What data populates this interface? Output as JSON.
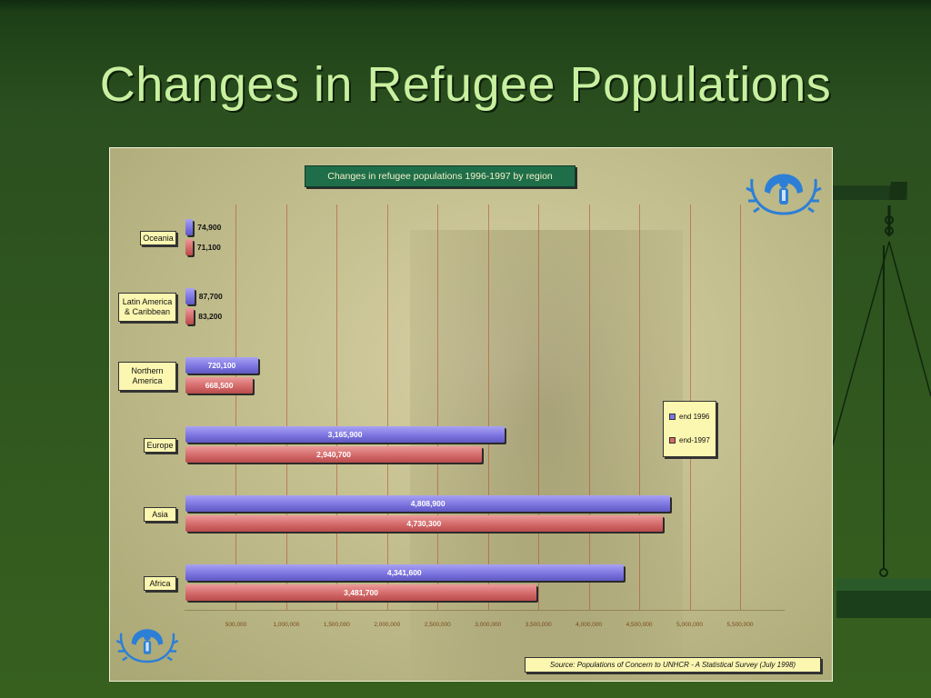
{
  "slide": {
    "title": "Changes in Refugee Populations"
  },
  "colors": {
    "series_1996": "#7d76e0",
    "series_1997": "#d46a6a",
    "title_bg": "#1f6e4a",
    "label_bg": "#fbf6b0"
  },
  "logo_icon": "unhcr-emblem-icon",
  "chart_data": {
    "type": "bar",
    "orientation": "horizontal",
    "title": "Changes in refugee populations 1996-1997 by region",
    "categories": [
      "Oceania",
      "Latin America & Caribbean",
      "Northern America",
      "Europe",
      "Asia",
      "Africa"
    ],
    "category_display": [
      [
        "Oceania"
      ],
      [
        "Latin America",
        "& Caribbean"
      ],
      [
        "Northern",
        "America"
      ],
      [
        "Europe"
      ],
      [
        "Asia"
      ],
      [
        "Africa"
      ]
    ],
    "series": [
      {
        "name": "end 1996",
        "values": [
          74900,
          87700,
          720100,
          3165900,
          4808900,
          4341600
        ],
        "labels": [
          "74,900",
          "87,700",
          "720,100",
          "3,165,900",
          "4,808,900",
          "4,341,600"
        ]
      },
      {
        "name": "end-1997",
        "values": [
          71100,
          83200,
          668500,
          2940700,
          4730300,
          3481700
        ],
        "labels": [
          "71,100",
          "83,200",
          "668,500",
          "2,940,700",
          "4,730,300",
          "3,481,700"
        ]
      }
    ],
    "xlim": [
      0,
      5500000
    ],
    "xticks": [
      500000,
      1000000,
      1500000,
      2000000,
      2500000,
      3000000,
      3500000,
      4000000,
      4500000,
      5000000,
      5500000
    ],
    "xtick_labels": [
      "500,000",
      "1,000,000",
      "1,500,000",
      "2,000,000",
      "2,500,000",
      "3,000,000",
      "3,500,000",
      "4,000,000",
      "4,500,000",
      "5,000,000",
      "5,500,000"
    ],
    "grid": true,
    "legend_position": "right"
  },
  "source": "Source: Populations of Concern to UNHCR - A Statistical Survey (July 1998)"
}
